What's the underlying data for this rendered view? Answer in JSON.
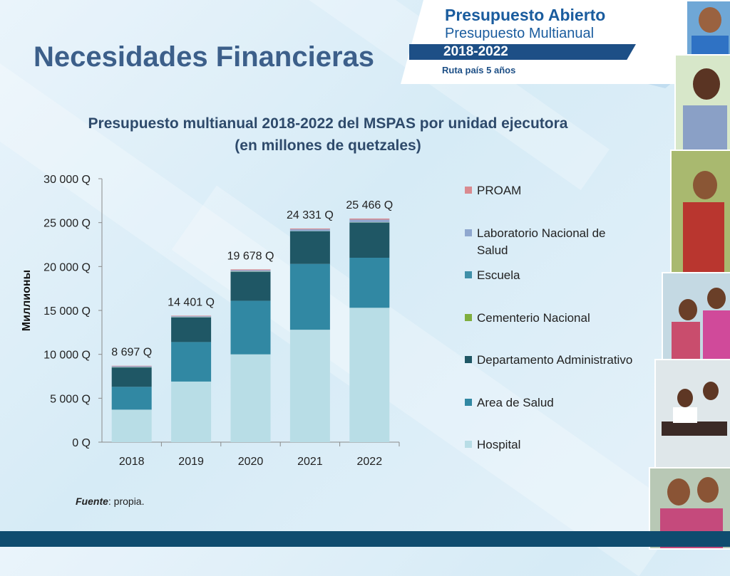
{
  "page": {
    "title": "Necesidades Financieras",
    "source_label": "Fuente",
    "source_text": ": propia."
  },
  "banner": {
    "line1": "Presupuesto Abierto",
    "line2": "Presupuesto Multianual",
    "years": "2018-2022",
    "subtitle": "Ruta país 5 años"
  },
  "colors": {
    "Hospital": "#b8dde6",
    "Area de Salud": "#3188a3",
    "Departamento Administrativo": "#1f5765",
    "Cementerio Nacional": "#7fae3e",
    "Escuela": "#3f8fa8",
    "Laboratorio Nacional de Salud": "#8fa7cf",
    "PROAM": "#d98a8f"
  },
  "chart_data": {
    "type": "bar",
    "stacked": true,
    "title": "Presupuesto multianual 2018-2022 del MSPAS por unidad ejecutora",
    "subtitle": "(en millones de quetzales)",
    "ylabel": "Миллионы",
    "xlabel": "",
    "categories": [
      "2018",
      "2019",
      "2020",
      "2021",
      "2022"
    ],
    "ylim": [
      0,
      30000
    ],
    "yticks": [
      "0 Q",
      "5 000 Q",
      "10 000 Q",
      "15 000 Q",
      "20 000 Q",
      "25 000 Q",
      "30 000 Q"
    ],
    "ytick_values": [
      0,
      5000,
      10000,
      15000,
      20000,
      25000,
      30000
    ],
    "totals": [
      "8 697 Q",
      "14 401 Q",
      "19 678 Q",
      "24 331 Q",
      "25 466 Q"
    ],
    "total_values": [
      8697,
      14401,
      19678,
      24331,
      25466
    ],
    "grid": false,
    "legend_position": "right",
    "series": [
      {
        "name": "Hospital",
        "values": [
          3700,
          6900,
          10000,
          12800,
          15300
        ]
      },
      {
        "name": "Area de Salud",
        "values": [
          2600,
          4500,
          6100,
          7500,
          5700
        ]
      },
      {
        "name": "Departamento Administrativo",
        "values": [
          2200,
          2800,
          3300,
          3700,
          4000
        ]
      },
      {
        "name": "Cementerio Nacional",
        "values": [
          20,
          20,
          20,
          20,
          20
        ]
      },
      {
        "name": "Escuela",
        "values": [
          20,
          20,
          20,
          20,
          20
        ]
      },
      {
        "name": "Laboratorio Nacional de Salud",
        "values": [
          100,
          100,
          150,
          200,
          300
        ]
      },
      {
        "name": "PROAM",
        "values": [
          57,
          61,
          88,
          91,
          126
        ]
      }
    ],
    "legend_order": [
      "PROAM",
      "Laboratorio Nacional de Salud",
      "Escuela",
      "Cementerio Nacional",
      "Departamento Administrativo",
      "Area de Salud",
      "Hospital"
    ]
  }
}
